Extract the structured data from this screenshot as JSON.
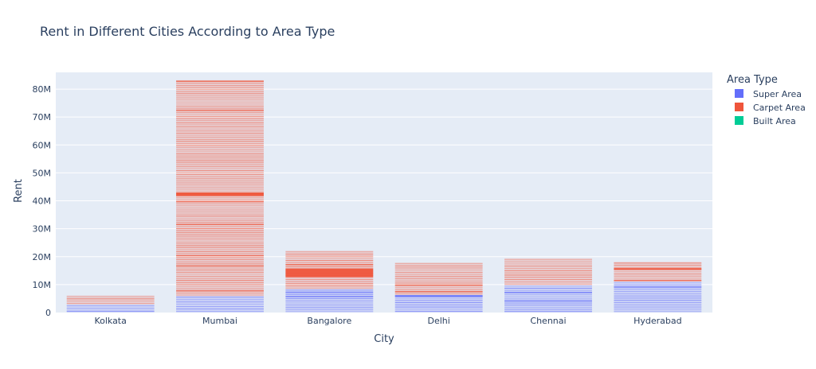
{
  "chart_data": {
    "type": "bar",
    "title": "Rent in Different Cities According to Area Type",
    "xlabel": "City",
    "ylabel": "Rent",
    "ylim": [
      0,
      86
    ],
    "y_unit": "M",
    "y_ticks": [
      0,
      10,
      20,
      30,
      40,
      50,
      60,
      70,
      80
    ],
    "grid": true,
    "legend_title": "Area Type",
    "legend_position": "right",
    "categories": [
      "Kolkata",
      "Mumbai",
      "Bangalore",
      "Delhi",
      "Chennai",
      "Hyderabad"
    ],
    "series": [
      {
        "name": "Super Area",
        "color": "#636efa",
        "values": [
          2.9,
          5.9,
          8.4,
          6.3,
          9.8,
          11.1
        ]
      },
      {
        "name": "Carpet Area",
        "color": "#ef553b",
        "values": [
          3.2,
          77.3,
          13.7,
          11.6,
          9.6,
          7.0
        ]
      },
      {
        "name": "Built Area",
        "color": "#00cc96",
        "values": [
          0,
          0,
          0,
          0,
          0,
          0
        ]
      }
    ]
  }
}
